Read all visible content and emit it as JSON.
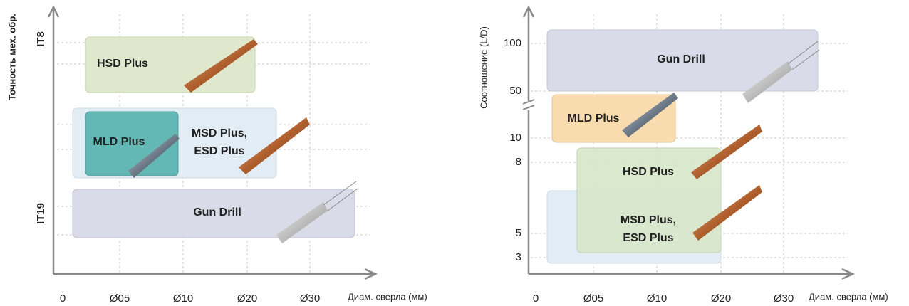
{
  "left": {
    "y_axis_title": "Точность мех. обр.",
    "y_labels": [
      "IT8",
      "IT19"
    ],
    "x_ticks": [
      "0",
      "Ø05",
      "Ø10",
      "Ø20",
      "Ø30"
    ],
    "x_axis_title": "Диам. сверла (мм)",
    "boxes": [
      {
        "lines": [
          "HSD Plus"
        ]
      },
      {
        "lines": [
          "MSD Plus,",
          "ESD Plus"
        ]
      },
      {
        "lines": [
          "MLD Plus"
        ]
      },
      {
        "lines": [
          "Gun Drill"
        ]
      }
    ]
  },
  "right": {
    "y_axis_title": "Соотношение (L/D)",
    "y_labels": [
      "100",
      "50",
      "10",
      "8",
      "5",
      "3"
    ],
    "x_ticks": [
      "0",
      "Ø05",
      "Ø10",
      "Ø20",
      "Ø30"
    ],
    "x_axis_title": "Диам. сверла (мм)",
    "boxes": [
      {
        "lines": [
          "Gun Drill"
        ]
      },
      {
        "lines": [
          "MLD Plus"
        ]
      },
      {
        "lines": [
          "MSD Plus,",
          "ESD Plus"
        ]
      },
      {
        "lines": [
          "HSD Plus"
        ]
      }
    ]
  }
}
